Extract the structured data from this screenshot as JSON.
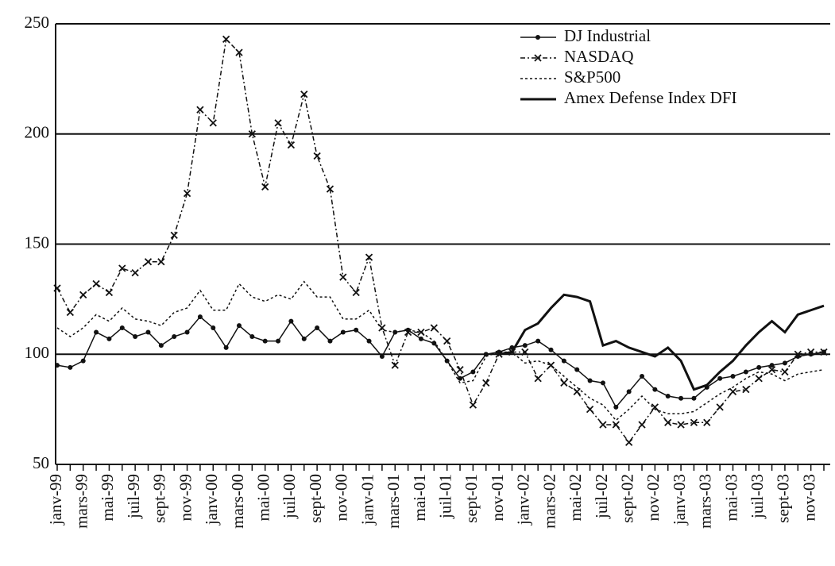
{
  "chart_data": {
    "type": "line",
    "categories": [
      "janv-99",
      null,
      "mars-99",
      null,
      "mai-99",
      null,
      "juil-99",
      null,
      "sept-99",
      null,
      "nov-99",
      null,
      "janv-00",
      null,
      "mars-00",
      null,
      "mai-00",
      null,
      "juil-00",
      null,
      "sept-00",
      null,
      "nov-00",
      null,
      "janv-01",
      null,
      "mars-01",
      null,
      "mai-01",
      null,
      "juil-01",
      null,
      "sept-01",
      null,
      "nov-01",
      null,
      "janv-02",
      null,
      "mars-02",
      null,
      "mai-02",
      null,
      "juil-02",
      null,
      "sept-02",
      null,
      "nov-02",
      null,
      "janv-03",
      null,
      "mars-03",
      null,
      "mai-03",
      null,
      "juil-03",
      null,
      "sept-03",
      null,
      "nov-03",
      null
    ],
    "series": [
      {
        "name": "DJ Industrial",
        "color": "#111111",
        "marker": "dot",
        "dash": "solid",
        "line": "thin",
        "values": [
          95,
          94,
          97,
          110,
          107,
          112,
          108,
          110,
          104,
          108,
          110,
          117,
          112,
          103,
          113,
          108,
          106,
          106,
          115,
          107,
          112,
          106,
          110,
          111,
          106,
          99,
          110,
          111,
          107,
          105,
          97,
          89,
          92,
          100,
          101,
          103,
          104,
          106,
          102,
          97,
          93,
          88,
          87,
          76,
          83,
          90,
          84,
          81,
          80,
          80,
          85,
          89,
          90,
          92,
          94,
          95,
          96,
          99,
          100,
          101
        ]
      },
      {
        "name": "NASDAQ",
        "color": "#111111",
        "marker": "x",
        "dash": "dashdot",
        "line": "thin",
        "values": [
          130,
          119,
          127,
          132,
          128,
          139,
          137,
          142,
          142,
          154,
          173,
          211,
          205,
          243,
          237,
          200,
          176,
          205,
          195,
          218,
          190,
          175,
          135,
          128,
          144,
          112,
          95,
          110,
          110,
          112,
          106,
          93,
          77,
          87,
          100,
          101,
          101,
          89,
          95,
          87,
          83,
          75,
          68,
          68,
          60,
          68,
          76,
          69,
          68,
          69,
          69,
          76,
          83,
          84,
          89,
          93,
          92,
          100,
          101,
          101
        ]
      },
      {
        "name": "S&P500",
        "color": "#111111",
        "marker": null,
        "dash": "dotted",
        "line": "thin",
        "values": [
          112,
          108,
          112,
          118,
          115,
          121,
          116,
          115,
          113,
          119,
          121,
          129,
          120,
          120,
          132,
          126,
          124,
          127,
          125,
          133,
          126,
          126,
          116,
          116,
          120,
          111,
          110,
          111,
          110,
          106,
          97,
          87,
          88,
          99,
          101,
          101,
          96,
          97,
          95,
          90,
          85,
          80,
          77,
          70,
          75,
          81,
          75,
          73,
          73,
          74,
          78,
          82,
          85,
          89,
          92,
          91,
          88,
          91,
          92,
          93
        ]
      },
      {
        "name": "Amex Defense Index DFI",
        "color": "#111111",
        "marker": null,
        "dash": "solid",
        "line": "bold",
        "values": [
          null,
          null,
          null,
          null,
          null,
          null,
          null,
          null,
          null,
          null,
          null,
          null,
          null,
          null,
          null,
          null,
          null,
          null,
          null,
          null,
          null,
          null,
          null,
          null,
          null,
          null,
          null,
          null,
          null,
          null,
          null,
          null,
          null,
          null,
          100,
          101,
          111,
          114,
          121,
          127,
          126,
          124,
          104,
          106,
          103,
          101,
          99,
          103,
          97,
          84,
          86,
          92,
          97,
          104,
          110,
          115,
          110,
          118,
          120,
          122
        ]
      }
    ],
    "ylim": [
      50,
      250
    ],
    "yticks": [
      50,
      100,
      150,
      200,
      250
    ],
    "grid": true,
    "legend": "top-right"
  }
}
